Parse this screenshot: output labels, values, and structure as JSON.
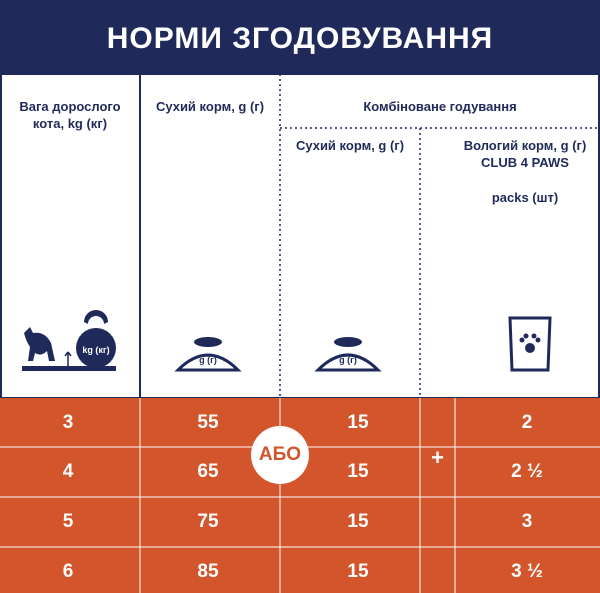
{
  "header": {
    "title": "НОРМИ ЗГОДОВУВАННЯ"
  },
  "table": {
    "headers": {
      "weight": "Вага дорослого кота, kg (кг)",
      "dry": "Сухий корм, g (г)",
      "combined": "Комбіноване годування",
      "combined_dry": "Сухий корм, g (г)",
      "combined_wet": "Вологий корм, g (г) CLUB 4 PAWS",
      "combined_wet_unit": "packs (шт)"
    },
    "icons": {
      "weight_label": "kg (кг)",
      "bowl_label": "g (г)"
    },
    "rows": [
      [
        "3",
        "55",
        "15",
        "2"
      ],
      [
        "4",
        "65",
        "15",
        "2 ½"
      ],
      [
        "5",
        "75",
        "15",
        "3"
      ],
      [
        "6",
        "85",
        "15",
        "3 ½"
      ]
    ],
    "or_label": "АБО",
    "plus_label": "+"
  }
}
